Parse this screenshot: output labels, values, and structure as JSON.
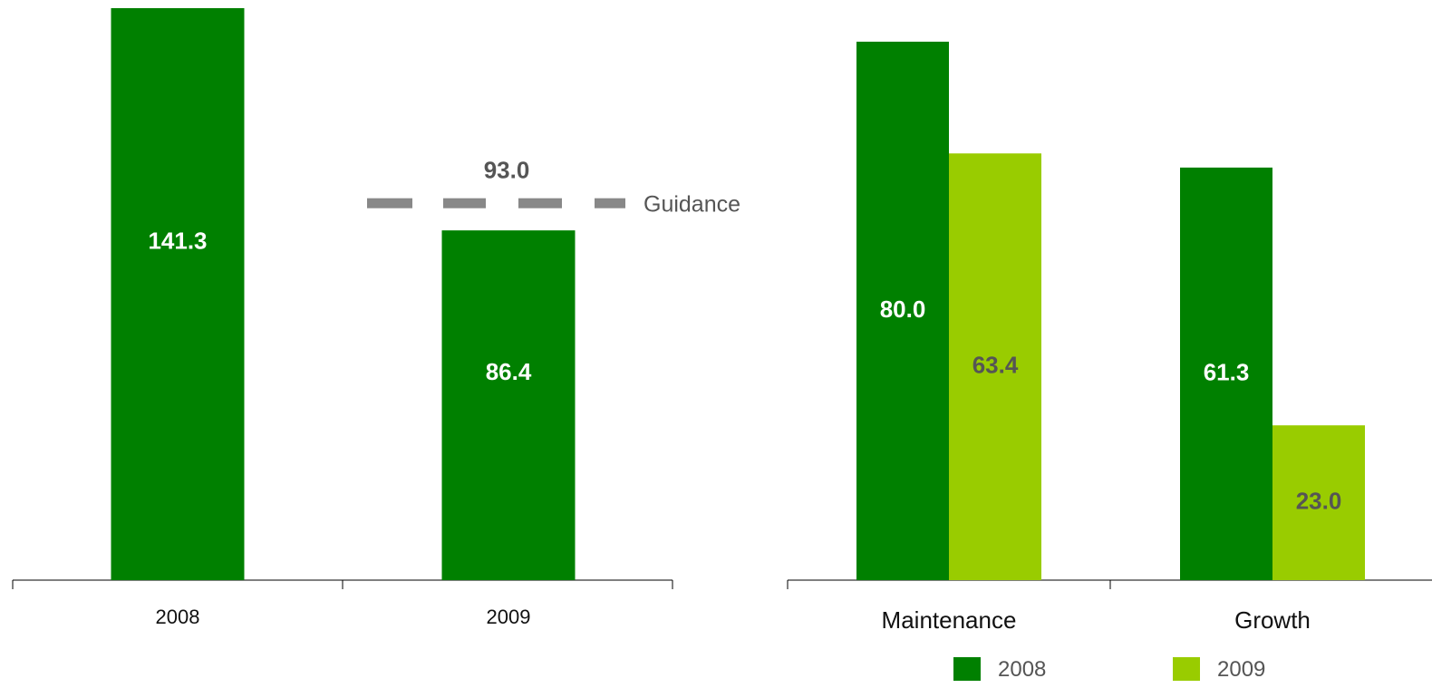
{
  "chart_data": [
    {
      "type": "bar",
      "categories": [
        "2008",
        "2009"
      ],
      "values": [
        141.3,
        86.4
      ],
      "data_labels": [
        "141.3",
        "86.4"
      ],
      "guidance": {
        "label": "Guidance",
        "value": 93.0,
        "value_label": "93.0"
      },
      "ylim": [
        0,
        145
      ],
      "colors": {
        "bar": "#008000",
        "guidance": "#888888"
      }
    },
    {
      "type": "bar",
      "categories": [
        "Maintenance",
        "Growth"
      ],
      "series": [
        {
          "name": "2008",
          "values": [
            80.0,
            61.3
          ],
          "labels": [
            "80.0",
            "61.3"
          ],
          "color": "#008000"
        },
        {
          "name": "2009",
          "values": [
            63.4,
            23.0
          ],
          "labels": [
            "63.4",
            "23.0"
          ],
          "color": "#99CC00"
        }
      ],
      "ylim": [
        0,
        85
      ],
      "legend": "bottom"
    }
  ]
}
